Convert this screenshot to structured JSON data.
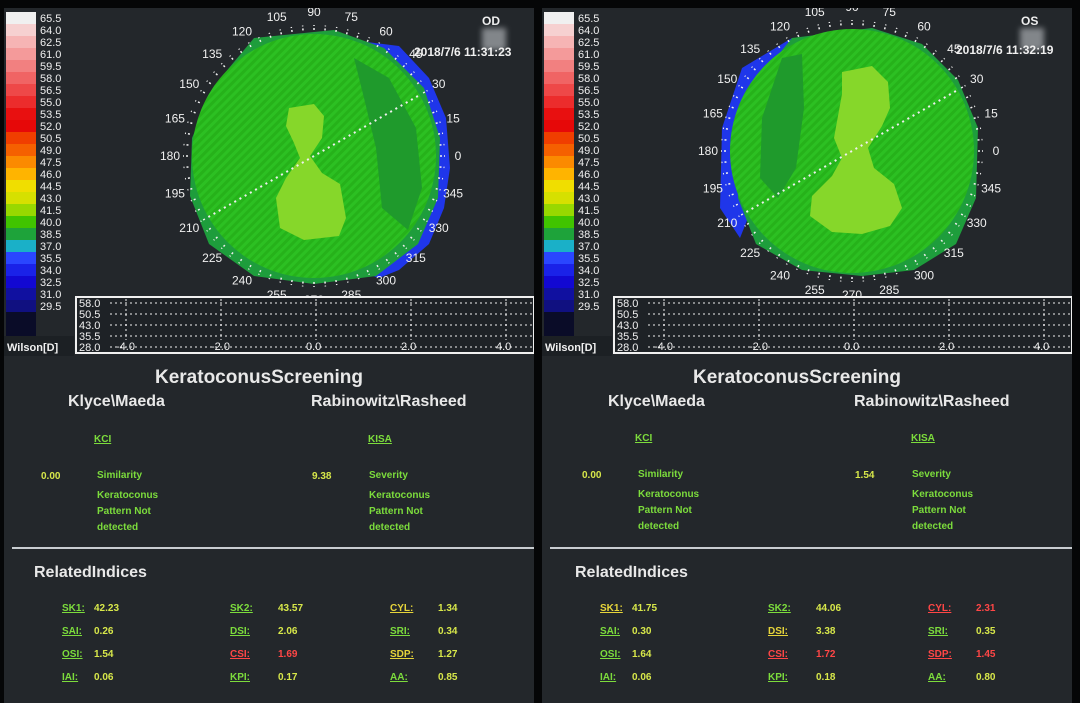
{
  "scale": {
    "labels": [
      "65.5",
      "64.0",
      "62.5",
      "61.0",
      "59.5",
      "58.0",
      "56.5",
      "55.0",
      "53.5",
      "52.0",
      "50.5",
      "49.0",
      "47.5",
      "46.0",
      "44.5",
      "43.0",
      "41.5",
      "40.0",
      "38.5",
      "37.0",
      "35.5",
      "34.0",
      "32.5",
      "31.0",
      "29.5"
    ],
    "colors": [
      "#f0f0f0",
      "#f6d0d0",
      "#f6b4b4",
      "#f49a9a",
      "#f28080",
      "#f06464",
      "#ee4848",
      "#ec2c2c",
      "#e81010",
      "#e60808",
      "#f03e00",
      "#f56000",
      "#fb8a00",
      "#ffb400",
      "#f0de00",
      "#d6e000",
      "#98d800",
      "#40c400",
      "#1ea33a",
      "#1ab0c8",
      "#2a46ff",
      "#1a22e8",
      "#1208d2",
      "#1010a0",
      "#101080"
    ],
    "units_label": "Wilson[D]"
  },
  "axis": {
    "degrees": [
      "0",
      "15",
      "30",
      "45",
      "60",
      "75",
      "90",
      "105",
      "120",
      "135",
      "150",
      "165",
      "180",
      "195",
      "210",
      "225",
      "240",
      "255",
      "270",
      "285",
      "300",
      "315",
      "330",
      "345"
    ]
  },
  "profile": {
    "y_labels": [
      "58.0",
      "50.5",
      "43.0",
      "35.5",
      "28.0"
    ],
    "x_labels": [
      "-4.0",
      "-2.0",
      "0.0",
      "2.0",
      "4.0"
    ]
  },
  "screen": {
    "title": "KeratoconusScreening",
    "method_a": "Klyce\\Maeda",
    "method_b": "Rabinowitz\\Rasheed",
    "related_title": "RelatedIndices",
    "kci_label": "KCI",
    "kisa_label": "KISA",
    "similarity_label": "Similarity",
    "severity_label": "Severity",
    "result_a": "Keratoconus\nPattern Not\ndetected",
    "result_b": "Keratoconus\nPattern Not\ndetected"
  },
  "od": {
    "eye": "OD",
    "datetime": "2018/7/6  11:31:23",
    "kci": "0.00",
    "kisa": "9.38",
    "indices": [
      {
        "label": "SK1:",
        "value": "42.23",
        "label_color": "g",
        "value_color": "vv"
      },
      {
        "label": "SAI:",
        "value": "0.26",
        "label_color": "g",
        "value_color": "vv"
      },
      {
        "label": "OSI:",
        "value": "1.54",
        "label_color": "g",
        "value_color": "vv"
      },
      {
        "label": "IAI:",
        "value": "0.06",
        "label_color": "g",
        "value_color": "vv"
      },
      {
        "label": "SK2:",
        "value": "43.57",
        "label_color": "g",
        "value_color": "vv"
      },
      {
        "label": "DSI:",
        "value": "2.06",
        "label_color": "g",
        "value_color": "vv"
      },
      {
        "label": "CSI:",
        "value": "1.69",
        "label_color": "r",
        "value_color": "r"
      },
      {
        "label": "KPI:",
        "value": "0.17",
        "label_color": "g",
        "value_color": "vv"
      },
      {
        "label": "CYL:",
        "value": "1.34",
        "label_color": "y",
        "value_color": "vv"
      },
      {
        "label": "SRI:",
        "value": "0.34",
        "label_color": "g",
        "value_color": "vv"
      },
      {
        "label": "SDP:",
        "value": "1.27",
        "label_color": "y",
        "value_color": "vv"
      },
      {
        "label": "AA:",
        "value": "0.85",
        "label_color": "g",
        "value_color": "vv"
      }
    ]
  },
  "os": {
    "eye": "OS",
    "datetime": "2018/7/6  11:32:19",
    "kci": "0.00",
    "kisa": "1.54",
    "indices": [
      {
        "label": "SK1:",
        "value": "41.75",
        "label_color": "y",
        "value_color": "vv"
      },
      {
        "label": "SAI:",
        "value": "0.30",
        "label_color": "g",
        "value_color": "vv"
      },
      {
        "label": "OSI:",
        "value": "1.64",
        "label_color": "g",
        "value_color": "vv"
      },
      {
        "label": "IAI:",
        "value": "0.06",
        "label_color": "g",
        "value_color": "vv"
      },
      {
        "label": "SK2:",
        "value": "44.06",
        "label_color": "g",
        "value_color": "vv"
      },
      {
        "label": "DSI:",
        "value": "3.38",
        "label_color": "y",
        "value_color": "vv"
      },
      {
        "label": "CSI:",
        "value": "1.72",
        "label_color": "r",
        "value_color": "r"
      },
      {
        "label": "KPI:",
        "value": "0.18",
        "label_color": "g",
        "value_color": "vv"
      },
      {
        "label": "CYL:",
        "value": "2.31",
        "label_color": "r",
        "value_color": "r"
      },
      {
        "label": "SRI:",
        "value": "0.35",
        "label_color": "g",
        "value_color": "vv"
      },
      {
        "label": "SDP:",
        "value": "1.45",
        "label_color": "r",
        "value_color": "r"
      },
      {
        "label": "AA:",
        "value": "0.80",
        "label_color": "g",
        "value_color": "vv"
      }
    ]
  }
}
